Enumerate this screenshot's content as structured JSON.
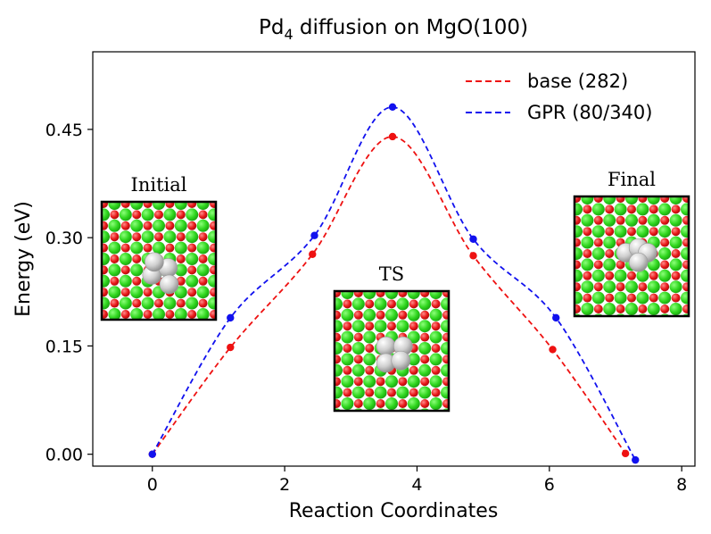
{
  "chart_data": {
    "type": "line",
    "title": "Pd",
    "title_subscript": "4",
    "title_suffix": " diffusion on MgO(100)",
    "xlabel": "Reaction Coordinates",
    "ylabel": "Energy (eV)",
    "xlim": [
      -0.9,
      8.2
    ],
    "ylim": [
      -0.0165,
      0.5575
    ],
    "xticks": [
      0,
      2,
      4,
      6,
      8
    ],
    "xtick_labels": [
      "0",
      "2",
      "4",
      "6",
      "8"
    ],
    "yticks": [
      0.0,
      0.15,
      0.3,
      0.45
    ],
    "ytick_labels": [
      "0.00",
      "0.15",
      "0.30",
      "0.45"
    ],
    "legend_position": "top-right",
    "series": [
      {
        "name": "base (282)",
        "color": "#ee1111",
        "x": [
          0.0,
          1.18,
          2.42,
          3.63,
          4.85,
          6.05,
          7.15
        ],
        "y": [
          0.0,
          0.148,
          0.277,
          0.44,
          0.275,
          0.145,
          0.001
        ]
      },
      {
        "name": "GPR (80/340)",
        "color": "#1111ee",
        "x": [
          0.0,
          1.18,
          2.45,
          3.63,
          4.85,
          6.1,
          7.3
        ],
        "y": [
          0.0,
          0.189,
          0.303,
          0.481,
          0.298,
          0.189,
          -0.008
        ]
      }
    ],
    "insets": [
      {
        "label": "Initial",
        "pattern": "initial"
      },
      {
        "label": "TS",
        "pattern": "ts"
      },
      {
        "label": "Final",
        "pattern": "final"
      }
    ]
  },
  "colors": {
    "magnesium": "#33dd22",
    "oxygen": "#ee1b1b",
    "palladium": "#c9c9c9",
    "background": "#ffffff"
  }
}
